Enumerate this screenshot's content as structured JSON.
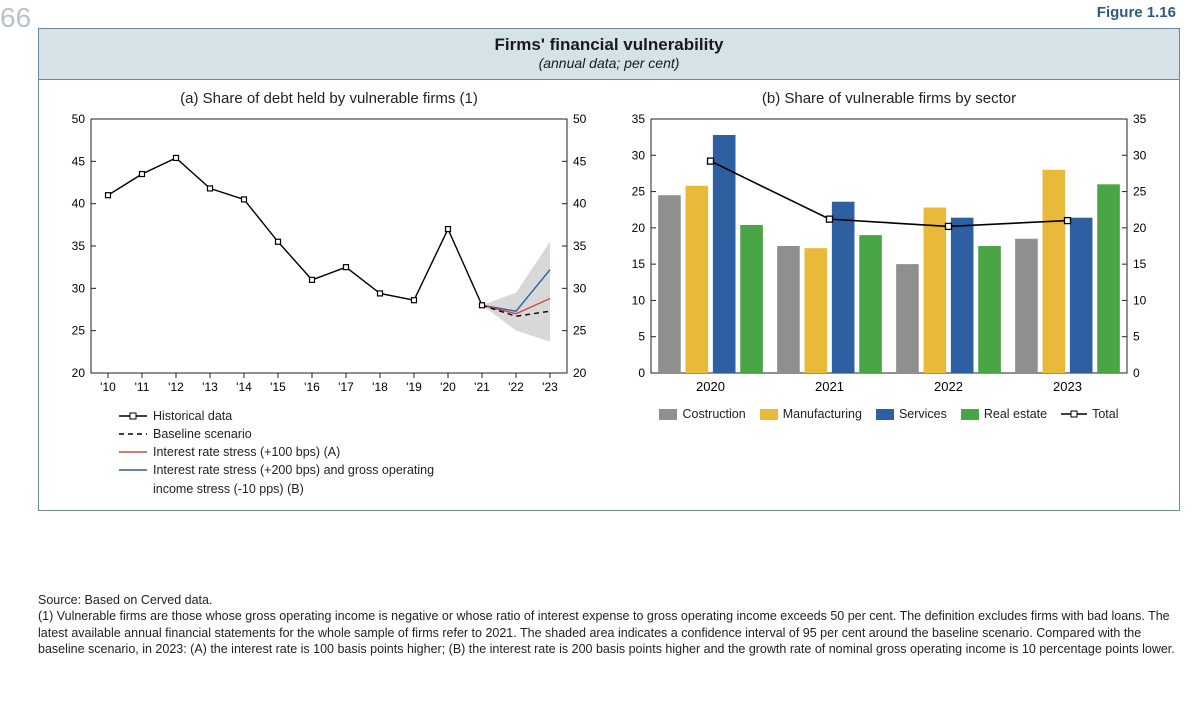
{
  "page_number_fragment": "66",
  "figure_label": "Figure 1.16",
  "title": "Firms' financial vulnerability",
  "subtitle": "(annual data; per cent)",
  "panelA": {
    "title": "(a) Share of debt held by vulnerable firms (1)",
    "ylim": [
      20,
      50
    ],
    "ytick_step": 5,
    "xticks": [
      "'10",
      "'11",
      "'12",
      "'13",
      "'14",
      "'15",
      "'16",
      "'17",
      "'18",
      "'19",
      "'20",
      "'21",
      "'22",
      "'23"
    ],
    "historical": {
      "x": [
        2010,
        2011,
        2012,
        2013,
        2014,
        2015,
        2016,
        2017,
        2018,
        2019,
        2020,
        2021
      ],
      "y": [
        41,
        43.5,
        45.4,
        41.8,
        40.5,
        35.5,
        31,
        32.5,
        29.4,
        28.6,
        37,
        28
      ],
      "color": "#000000",
      "marker": "square",
      "marker_size": 5,
      "line_width": 1.4
    },
    "baseline": {
      "x": [
        2021,
        2022,
        2023
      ],
      "y": [
        28,
        26.7,
        27.3
      ],
      "color": "#000000",
      "dash": "5,4",
      "line_width": 1.4
    },
    "stressA": {
      "x": [
        2021,
        2022,
        2023
      ],
      "y": [
        28,
        27,
        28.8
      ],
      "color": "#d24a3a",
      "line_width": 1.4
    },
    "stressB": {
      "x": [
        2021,
        2022,
        2023
      ],
      "y": [
        28,
        27.3,
        32.2
      ],
      "color": "#2e5fa3",
      "line_width": 1.4
    },
    "ci": {
      "x": [
        2021,
        2022,
        2023
      ],
      "upper": [
        28,
        29.5,
        35.5
      ],
      "lower": [
        28,
        25,
        23.7
      ],
      "fill": "#b8b8b8",
      "opacity": 0.55
    },
    "legend": [
      {
        "marker": "line-square",
        "color": "#000000",
        "label": "Historical data"
      },
      {
        "marker": "dash",
        "color": "#000000",
        "label": "Baseline scenario"
      },
      {
        "marker": "line",
        "color": "#d24a3a",
        "label": "Interest rate stress (+100 bps) (A)"
      },
      {
        "marker": "line",
        "color": "#2e5fa3",
        "label": "Interest rate stress (+200 bps) and gross operating"
      },
      {
        "marker": "none",
        "color": "",
        "label": "income stress (-10 pps) (B)"
      }
    ]
  },
  "panelB": {
    "title": "(b) Share of vulnerable firms by sector",
    "ylim": [
      0,
      35
    ],
    "ytick_step": 5,
    "years": [
      2020,
      2021,
      2022,
      2023
    ],
    "series": [
      {
        "name": "Costruction",
        "color": "#8f8f8f",
        "values": [
          24.5,
          17.5,
          15,
          18.5
        ]
      },
      {
        "name": "Manufacturing",
        "color": "#e9b93a",
        "values": [
          25.8,
          17.2,
          22.8,
          28
        ]
      },
      {
        "name": "Services",
        "color": "#2e5fa3",
        "values": [
          32.8,
          23.6,
          21.4,
          21.4
        ]
      },
      {
        "name": "Real estate",
        "color": "#4aa547",
        "values": [
          20.4,
          19,
          17.5,
          26
        ]
      }
    ],
    "total": {
      "values": [
        29.2,
        21.2,
        20.2,
        21
      ],
      "color": "#000000",
      "marker": "square",
      "marker_size": 6,
      "line_width": 1.6,
      "label": "Total"
    },
    "bar_width": 0.19,
    "gap": 0.04
  },
  "colors": {
    "border": "#6c8b97",
    "header_bg": "#d5e2e8",
    "text": "#1a1a1a"
  },
  "footnotes": {
    "source": "Source: Based on Cerved data.",
    "note": "(1) Vulnerable firms are those whose gross operating income is negative or whose ratio of interest expense to gross operating income exceeds 50 per cent. The definition excludes firms with bad loans. The latest available annual financial statements for the whole sample of firms refer to 2021. The shaded area indicates a confidence interval of 95 per cent around the baseline scenario. Compared with the baseline scenario, in 2023: (A) the interest rate is 100 basis points higher; (B) the interest rate is 200 basis points higher and the growth rate of nominal gross operating income is 10 percentage points lower."
  }
}
